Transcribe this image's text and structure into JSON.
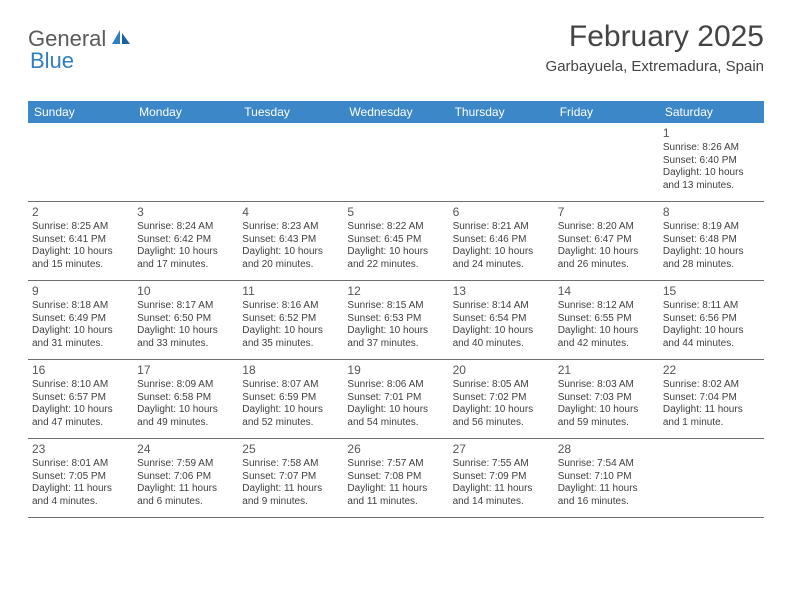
{
  "logo": {
    "general": "General",
    "blue": "Blue"
  },
  "title": "February 2025",
  "location": "Garbayuela, Extremadura, Spain",
  "colors": {
    "header_bg": "#3b87c8",
    "header_text": "#ffffff",
    "border": "#6e6e6e",
    "text": "#404040",
    "title": "#444444"
  },
  "dayheaders": [
    "Sunday",
    "Monday",
    "Tuesday",
    "Wednesday",
    "Thursday",
    "Friday",
    "Saturday"
  ],
  "weeks": [
    [
      null,
      null,
      null,
      null,
      null,
      null,
      {
        "n": "1",
        "sr": "Sunrise: 8:26 AM",
        "ss": "Sunset: 6:40 PM",
        "dl1": "Daylight: 10 hours",
        "dl2": "and 13 minutes."
      }
    ],
    [
      {
        "n": "2",
        "sr": "Sunrise: 8:25 AM",
        "ss": "Sunset: 6:41 PM",
        "dl1": "Daylight: 10 hours",
        "dl2": "and 15 minutes."
      },
      {
        "n": "3",
        "sr": "Sunrise: 8:24 AM",
        "ss": "Sunset: 6:42 PM",
        "dl1": "Daylight: 10 hours",
        "dl2": "and 17 minutes."
      },
      {
        "n": "4",
        "sr": "Sunrise: 8:23 AM",
        "ss": "Sunset: 6:43 PM",
        "dl1": "Daylight: 10 hours",
        "dl2": "and 20 minutes."
      },
      {
        "n": "5",
        "sr": "Sunrise: 8:22 AM",
        "ss": "Sunset: 6:45 PM",
        "dl1": "Daylight: 10 hours",
        "dl2": "and 22 minutes."
      },
      {
        "n": "6",
        "sr": "Sunrise: 8:21 AM",
        "ss": "Sunset: 6:46 PM",
        "dl1": "Daylight: 10 hours",
        "dl2": "and 24 minutes."
      },
      {
        "n": "7",
        "sr": "Sunrise: 8:20 AM",
        "ss": "Sunset: 6:47 PM",
        "dl1": "Daylight: 10 hours",
        "dl2": "and 26 minutes."
      },
      {
        "n": "8",
        "sr": "Sunrise: 8:19 AM",
        "ss": "Sunset: 6:48 PM",
        "dl1": "Daylight: 10 hours",
        "dl2": "and 28 minutes."
      }
    ],
    [
      {
        "n": "9",
        "sr": "Sunrise: 8:18 AM",
        "ss": "Sunset: 6:49 PM",
        "dl1": "Daylight: 10 hours",
        "dl2": "and 31 minutes."
      },
      {
        "n": "10",
        "sr": "Sunrise: 8:17 AM",
        "ss": "Sunset: 6:50 PM",
        "dl1": "Daylight: 10 hours",
        "dl2": "and 33 minutes."
      },
      {
        "n": "11",
        "sr": "Sunrise: 8:16 AM",
        "ss": "Sunset: 6:52 PM",
        "dl1": "Daylight: 10 hours",
        "dl2": "and 35 minutes."
      },
      {
        "n": "12",
        "sr": "Sunrise: 8:15 AM",
        "ss": "Sunset: 6:53 PM",
        "dl1": "Daylight: 10 hours",
        "dl2": "and 37 minutes."
      },
      {
        "n": "13",
        "sr": "Sunrise: 8:14 AM",
        "ss": "Sunset: 6:54 PM",
        "dl1": "Daylight: 10 hours",
        "dl2": "and 40 minutes."
      },
      {
        "n": "14",
        "sr": "Sunrise: 8:12 AM",
        "ss": "Sunset: 6:55 PM",
        "dl1": "Daylight: 10 hours",
        "dl2": "and 42 minutes."
      },
      {
        "n": "15",
        "sr": "Sunrise: 8:11 AM",
        "ss": "Sunset: 6:56 PM",
        "dl1": "Daylight: 10 hours",
        "dl2": "and 44 minutes."
      }
    ],
    [
      {
        "n": "16",
        "sr": "Sunrise: 8:10 AM",
        "ss": "Sunset: 6:57 PM",
        "dl1": "Daylight: 10 hours",
        "dl2": "and 47 minutes."
      },
      {
        "n": "17",
        "sr": "Sunrise: 8:09 AM",
        "ss": "Sunset: 6:58 PM",
        "dl1": "Daylight: 10 hours",
        "dl2": "and 49 minutes."
      },
      {
        "n": "18",
        "sr": "Sunrise: 8:07 AM",
        "ss": "Sunset: 6:59 PM",
        "dl1": "Daylight: 10 hours",
        "dl2": "and 52 minutes."
      },
      {
        "n": "19",
        "sr": "Sunrise: 8:06 AM",
        "ss": "Sunset: 7:01 PM",
        "dl1": "Daylight: 10 hours",
        "dl2": "and 54 minutes."
      },
      {
        "n": "20",
        "sr": "Sunrise: 8:05 AM",
        "ss": "Sunset: 7:02 PM",
        "dl1": "Daylight: 10 hours",
        "dl2": "and 56 minutes."
      },
      {
        "n": "21",
        "sr": "Sunrise: 8:03 AM",
        "ss": "Sunset: 7:03 PM",
        "dl1": "Daylight: 10 hours",
        "dl2": "and 59 minutes."
      },
      {
        "n": "22",
        "sr": "Sunrise: 8:02 AM",
        "ss": "Sunset: 7:04 PM",
        "dl1": "Daylight: 11 hours",
        "dl2": "and 1 minute."
      }
    ],
    [
      {
        "n": "23",
        "sr": "Sunrise: 8:01 AM",
        "ss": "Sunset: 7:05 PM",
        "dl1": "Daylight: 11 hours",
        "dl2": "and 4 minutes."
      },
      {
        "n": "24",
        "sr": "Sunrise: 7:59 AM",
        "ss": "Sunset: 7:06 PM",
        "dl1": "Daylight: 11 hours",
        "dl2": "and 6 minutes."
      },
      {
        "n": "25",
        "sr": "Sunrise: 7:58 AM",
        "ss": "Sunset: 7:07 PM",
        "dl1": "Daylight: 11 hours",
        "dl2": "and 9 minutes."
      },
      {
        "n": "26",
        "sr": "Sunrise: 7:57 AM",
        "ss": "Sunset: 7:08 PM",
        "dl1": "Daylight: 11 hours",
        "dl2": "and 11 minutes."
      },
      {
        "n": "27",
        "sr": "Sunrise: 7:55 AM",
        "ss": "Sunset: 7:09 PM",
        "dl1": "Daylight: 11 hours",
        "dl2": "and 14 minutes."
      },
      {
        "n": "28",
        "sr": "Sunrise: 7:54 AM",
        "ss": "Sunset: 7:10 PM",
        "dl1": "Daylight: 11 hours",
        "dl2": "and 16 minutes."
      },
      null
    ]
  ]
}
